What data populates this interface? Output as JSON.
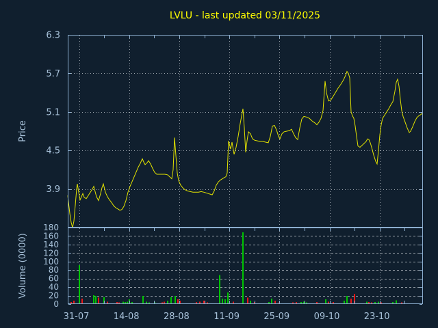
{
  "title": "LVLU - last updated 03/11/2025",
  "colors": {
    "background": "#101f2e",
    "title": "#ffff00",
    "axis_text": "#a8c2da",
    "border": "#8caecf",
    "grid": "#9ba3ab",
    "price_line": "#e3e300",
    "volume_up": "#00c400",
    "volume_down": "#ef1515"
  },
  "price_axis": {
    "label": "Price",
    "tick_labels": [
      "6.3",
      "5.7",
      "5.1",
      "4.5",
      "3.9"
    ],
    "tick_values": [
      6.3,
      5.7,
      5.1,
      4.5,
      3.9
    ],
    "range": [
      3.3,
      6.3
    ]
  },
  "volume_axis": {
    "label": "Volume (0000)",
    "tick_labels": [
      "180",
      "160",
      "140",
      "120",
      "100",
      "80",
      "60",
      "40",
      "20",
      "0"
    ],
    "tick_values": [
      180,
      160,
      140,
      120,
      100,
      80,
      60,
      40,
      20,
      0
    ],
    "range": [
      0,
      180
    ]
  },
  "x_axis": {
    "tick_labels": [
      "31-07",
      "14-08",
      "28-08",
      "11-09",
      "25-09",
      "09-10",
      "23-10"
    ]
  },
  "chart_data": [
    {
      "type": "line",
      "name": "price",
      "title": "LVLU - last updated 03/11/2025",
      "ylabel": "Price",
      "ylim": [
        3.3,
        6.3
      ],
      "yticks": [
        6.3,
        5.7,
        5.1,
        4.5,
        3.9
      ],
      "xtick_labels": [
        "31-07",
        "14-08",
        "28-08",
        "11-09",
        "25-09",
        "09-10",
        "23-10"
      ],
      "grid": true,
      "legend": "none",
      "points": [
        [
          99,
          3.8
        ],
        [
          100,
          3.7
        ],
        [
          102,
          3.52
        ],
        [
          104,
          3.38
        ],
        [
          106,
          3.3
        ],
        [
          108,
          3.4
        ],
        [
          110,
          3.65
        ],
        [
          112,
          3.9
        ],
        [
          113,
          3.98
        ],
        [
          115,
          3.85
        ],
        [
          117,
          3.73
        ],
        [
          119,
          3.78
        ],
        [
          121,
          3.83
        ],
        [
          123,
          3.77
        ],
        [
          126,
          3.75
        ],
        [
          129,
          3.8
        ],
        [
          132,
          3.85
        ],
        [
          135,
          3.9
        ],
        [
          137,
          3.94
        ],
        [
          139,
          3.86
        ],
        [
          141,
          3.78
        ],
        [
          144,
          3.72
        ],
        [
          147,
          3.83
        ],
        [
          149,
          3.92
        ],
        [
          151,
          3.98
        ],
        [
          154,
          3.85
        ],
        [
          157,
          3.78
        ],
        [
          160,
          3.73
        ],
        [
          163,
          3.69
        ],
        [
          166,
          3.64
        ],
        [
          169,
          3.61
        ],
        [
          172,
          3.59
        ],
        [
          175,
          3.57
        ],
        [
          178,
          3.58
        ],
        [
          181,
          3.63
        ],
        [
          184,
          3.72
        ],
        [
          187,
          3.85
        ],
        [
          190,
          3.94
        ],
        [
          194,
          4.04
        ],
        [
          198,
          4.14
        ],
        [
          202,
          4.24
        ],
        [
          205,
          4.3
        ],
        [
          208,
          4.37
        ],
        [
          210,
          4.32
        ],
        [
          212,
          4.28
        ],
        [
          215,
          4.31
        ],
        [
          217,
          4.34
        ],
        [
          220,
          4.29
        ],
        [
          223,
          4.22
        ],
        [
          226,
          4.16
        ],
        [
          229,
          4.13
        ],
        [
          233,
          4.13
        ],
        [
          237,
          4.13
        ],
        [
          241,
          4.13
        ],
        [
          245,
          4.12
        ],
        [
          248,
          4.09
        ],
        [
          251,
          4.06
        ],
        [
          253,
          4.2
        ],
        [
          255,
          4.7
        ],
        [
          257,
          4.42
        ],
        [
          259,
          4.15
        ],
        [
          261,
          4.03
        ],
        [
          264,
          3.96
        ],
        [
          267,
          3.92
        ],
        [
          270,
          3.89
        ],
        [
          274,
          3.87
        ],
        [
          278,
          3.86
        ],
        [
          282,
          3.85
        ],
        [
          286,
          3.85
        ],
        [
          290,
          3.85
        ],
        [
          294,
          3.86
        ],
        [
          298,
          3.85
        ],
        [
          301,
          3.84
        ],
        [
          304,
          3.83
        ],
        [
          307,
          3.82
        ],
        [
          310,
          3.81
        ],
        [
          313,
          3.87
        ],
        [
          316,
          3.96
        ],
        [
          319,
          4.01
        ],
        [
          322,
          4.04
        ],
        [
          325,
          4.06
        ],
        [
          328,
          4.08
        ],
        [
          330,
          4.09
        ],
        [
          332,
          4.15
        ],
        [
          334,
          4.65
        ],
        [
          337,
          4.52
        ],
        [
          339,
          4.63
        ],
        [
          342,
          4.44
        ],
        [
          345,
          4.55
        ],
        [
          348,
          4.72
        ],
        [
          351,
          4.92
        ],
        [
          355,
          5.15
        ],
        [
          357,
          4.85
        ],
        [
          359,
          4.47
        ],
        [
          361,
          4.65
        ],
        [
          363,
          4.79
        ],
        [
          366,
          4.76
        ],
        [
          369,
          4.68
        ],
        [
          372,
          4.66
        ],
        [
          376,
          4.65
        ],
        [
          380,
          4.64
        ],
        [
          384,
          4.64
        ],
        [
          388,
          4.63
        ],
        [
          392,
          4.62
        ],
        [
          395,
          4.72
        ],
        [
          398,
          4.88
        ],
        [
          401,
          4.89
        ],
        [
          404,
          4.82
        ],
        [
          407,
          4.72
        ],
        [
          409,
          4.68
        ],
        [
          412,
          4.76
        ],
        [
          415,
          4.79
        ],
        [
          419,
          4.8
        ],
        [
          423,
          4.81
        ],
        [
          426,
          4.83
        ],
        [
          429,
          4.76
        ],
        [
          432,
          4.7
        ],
        [
          435,
          4.67
        ],
        [
          438,
          4.85
        ],
        [
          441,
          4.99
        ],
        [
          444,
          5.03
        ],
        [
          448,
          5.02
        ],
        [
          452,
          5.0
        ],
        [
          456,
          4.96
        ],
        [
          460,
          4.93
        ],
        [
          463,
          4.9
        ],
        [
          466,
          4.94
        ],
        [
          469,
          5.0
        ],
        [
          472,
          5.12
        ],
        [
          475,
          5.58
        ],
        [
          477,
          5.4
        ],
        [
          480,
          5.27
        ],
        [
          483,
          5.28
        ],
        [
          486,
          5.33
        ],
        [
          490,
          5.4
        ],
        [
          494,
          5.47
        ],
        [
          498,
          5.53
        ],
        [
          502,
          5.6
        ],
        [
          505,
          5.67
        ],
        [
          507,
          5.73
        ],
        [
          509,
          5.7
        ],
        [
          511,
          5.63
        ],
        [
          513,
          5.1
        ],
        [
          515,
          5.04
        ],
        [
          517,
          5.0
        ],
        [
          519,
          4.88
        ],
        [
          521,
          4.72
        ],
        [
          523,
          4.57
        ],
        [
          526,
          4.55
        ],
        [
          529,
          4.58
        ],
        [
          532,
          4.61
        ],
        [
          535,
          4.64
        ],
        [
          537,
          4.68
        ],
        [
          539,
          4.67
        ],
        [
          541,
          4.62
        ],
        [
          543,
          4.55
        ],
        [
          546,
          4.43
        ],
        [
          549,
          4.33
        ],
        [
          551,
          4.29
        ],
        [
          553,
          4.5
        ],
        [
          555,
          4.74
        ],
        [
          557,
          4.9
        ],
        [
          559,
          5.0
        ],
        [
          562,
          5.05
        ],
        [
          565,
          5.1
        ],
        [
          568,
          5.15
        ],
        [
          571,
          5.21
        ],
        [
          574,
          5.26
        ],
        [
          577,
          5.42
        ],
        [
          579,
          5.56
        ],
        [
          581,
          5.61
        ],
        [
          583,
          5.5
        ],
        [
          585,
          5.29
        ],
        [
          587,
          5.12
        ],
        [
          589,
          5.03
        ],
        [
          592,
          4.94
        ],
        [
          595,
          4.85
        ],
        [
          598,
          4.78
        ],
        [
          600,
          4.8
        ],
        [
          603,
          4.87
        ],
        [
          606,
          4.95
        ],
        [
          609,
          5.01
        ],
        [
          612,
          5.04
        ],
        [
          615,
          5.06
        ],
        [
          617,
          5.08
        ]
      ]
    },
    {
      "type": "bar",
      "name": "volume",
      "ylabel": "Volume (0000)",
      "ylim": [
        0,
        180
      ],
      "yticks": [
        180,
        160,
        140,
        120,
        100,
        80,
        60,
        40,
        20,
        0
      ],
      "grid": true,
      "bars": [
        [
          104,
          5,
          "d"
        ],
        [
          108,
          8,
          "d"
        ],
        [
          116,
          92,
          "u"
        ],
        [
          120,
          13,
          "d"
        ],
        [
          137,
          21,
          "u"
        ],
        [
          140,
          19,
          "u"
        ],
        [
          144,
          15,
          "d"
        ],
        [
          152,
          16,
          "u"
        ],
        [
          157,
          6,
          "d"
        ],
        [
          171,
          5,
          "d"
        ],
        [
          174,
          4,
          "d"
        ],
        [
          180,
          6,
          "u"
        ],
        [
          183,
          5,
          "u"
        ],
        [
          186,
          6,
          "u"
        ],
        [
          189,
          11,
          "u"
        ],
        [
          193,
          5,
          "u"
        ],
        [
          209,
          19,
          "u"
        ],
        [
          214,
          6,
          "u"
        ],
        [
          218,
          4,
          "u"
        ],
        [
          226,
          5,
          "u"
        ],
        [
          237,
          4,
          "d"
        ],
        [
          240,
          6,
          "d"
        ],
        [
          245,
          8,
          "u"
        ],
        [
          250,
          16,
          "u"
        ],
        [
          256,
          19,
          "u"
        ],
        [
          260,
          11,
          "d"
        ],
        [
          263,
          8,
          "d"
        ],
        [
          287,
          5,
          "d"
        ],
        [
          292,
          6,
          "d"
        ],
        [
          298,
          8,
          "d"
        ],
        [
          303,
          4,
          "d"
        ],
        [
          321,
          68,
          "u"
        ],
        [
          325,
          13,
          "u"
        ],
        [
          329,
          11,
          "u"
        ],
        [
          333,
          27,
          "u"
        ],
        [
          341,
          6,
          "d"
        ],
        [
          355,
          169,
          "u"
        ],
        [
          362,
          15,
          "d"
        ],
        [
          366,
          8,
          "u"
        ],
        [
          372,
          5,
          "d"
        ],
        [
          383,
          2,
          "d"
        ],
        [
          393,
          5,
          "u"
        ],
        [
          397,
          13,
          "u"
        ],
        [
          402,
          8,
          "d"
        ],
        [
          408,
          4,
          "d"
        ],
        [
          428,
          4,
          "d"
        ],
        [
          433,
          5,
          "d"
        ],
        [
          440,
          5,
          "u"
        ],
        [
          444,
          6,
          "u"
        ],
        [
          448,
          4,
          "u"
        ],
        [
          463,
          5,
          "d"
        ],
        [
          476,
          11,
          "u"
        ],
        [
          480,
          6,
          "d"
        ],
        [
          487,
          5,
          "d"
        ],
        [
          503,
          8,
          "u"
        ],
        [
          507,
          19,
          "u"
        ],
        [
          513,
          13,
          "d"
        ],
        [
          518,
          24,
          "d"
        ],
        [
          536,
          6,
          "u"
        ],
        [
          539,
          5,
          "d"
        ],
        [
          543,
          4,
          "d"
        ],
        [
          548,
          5,
          "u"
        ],
        [
          553,
          6,
          "u"
        ],
        [
          557,
          4,
          "d"
        ],
        [
          574,
          5,
          "u"
        ],
        [
          579,
          9,
          "u"
        ],
        [
          587,
          4,
          "d"
        ]
      ]
    }
  ]
}
